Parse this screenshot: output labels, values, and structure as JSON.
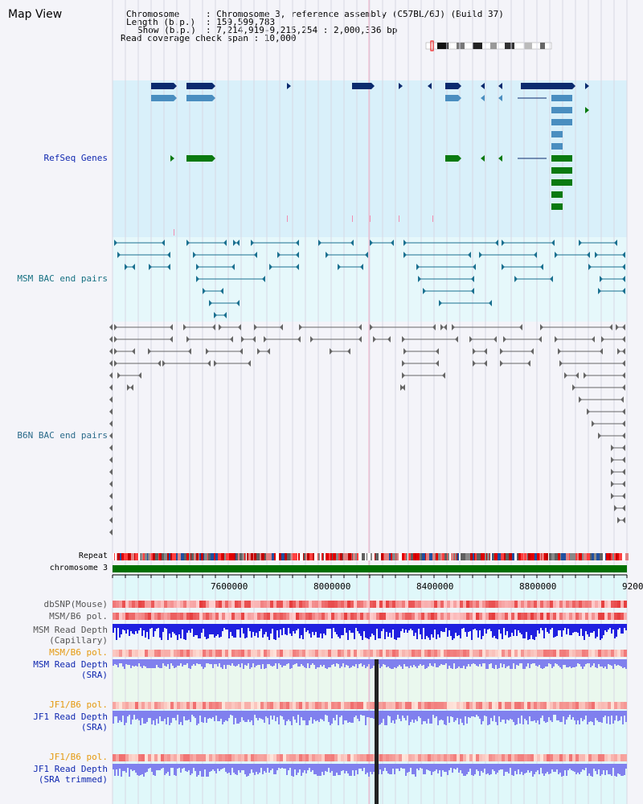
{
  "page": {
    "title": "Map View"
  },
  "info": {
    "chromosome_key": "Chromosome",
    "chromosome_val": ": Chromosome 3, reference assembly (C57BL/6J) (Build 37)",
    "length_key": "Length (b.p.)",
    "length_val": ": 159,599,783",
    "show_key": "Show (b.p.)",
    "show_val": ": 7,214,919-9,215,254 : 2,000,336 bp",
    "span_text": "Read coverage check span : 10,000"
  },
  "tracks": {
    "refseq": "RefSeq Genes",
    "msm_bac": "MSM BAC end pairs",
    "b6n_bac": "B6N BAC end pairs",
    "repeat": "Repeat",
    "chromosome": "chromosome 3",
    "dbsnp": "dbSNP(Mouse)",
    "msm_b6_pol_1": "MSM/B6 pol.",
    "msm_read_depth_cap_1": "MSM Read Depth",
    "msm_read_depth_cap_2": "(Capillary)",
    "msm_b6_pol_2": "MSM/B6 pol.",
    "msm_read_depth_sra_1": "MSM Read Depth",
    "msm_read_depth_sra_2": "(SRA)",
    "jf1_b6_pol_1": "JF1/B6 pol.",
    "jf1_read_depth_sra_1": "JF1 Read Depth",
    "jf1_read_depth_sra_2": "(SRA)",
    "jf1_b6_pol_2": "JF1/B6 pol.",
    "jf1_read_depth_trim_1": "JF1 Read Depth",
    "jf1_read_depth_trim_2": "(SRA trimmed)"
  },
  "axis": {
    "ticks": [
      "7600000",
      "8000000",
      "8400000",
      "8800000",
      "9200"
    ]
  },
  "colors": {
    "refseq_bg": "#d9f0fa",
    "msm_bg": "#e6f8fb",
    "b6n_bg": "#f4f4f9",
    "chromosome_bar": "#007000",
    "ref_dark": "#0a2a6e",
    "ref_mid": "#4a8ec0",
    "ref_green": "#0a7a10",
    "msm_pair": "#1a7090",
    "b6n_pair": "#666666",
    "read_depth_blue": "#2020e0",
    "read_depth_light": "#8080ee"
  }
}
